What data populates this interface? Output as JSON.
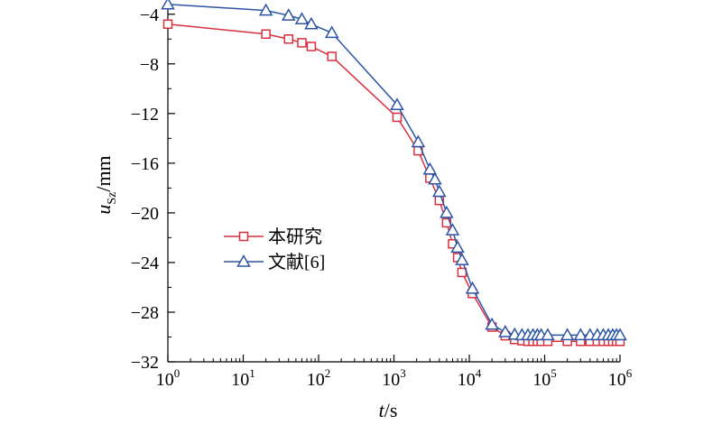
{
  "chart_data": {
    "type": "line",
    "x_scale": "log",
    "xlim": [
      1,
      1000000
    ],
    "ylim": [
      -32,
      -3
    ],
    "xlabel": {
      "italic": "t",
      "rest": "/s"
    },
    "ylabel": {
      "italic": "u",
      "sub": "Sz",
      "rest": "/mm"
    },
    "x_ticks": [
      {
        "value": 1,
        "base": "10",
        "exp": "0"
      },
      {
        "value": 10,
        "base": "10",
        "exp": "1"
      },
      {
        "value": 100,
        "base": "10",
        "exp": "2"
      },
      {
        "value": 1000,
        "base": "10",
        "exp": "3"
      },
      {
        "value": 10000,
        "base": "10",
        "exp": "4"
      },
      {
        "value": 100000,
        "base": "10",
        "exp": "5"
      },
      {
        "value": 1000000,
        "base": "10",
        "exp": "6"
      }
    ],
    "y_ticks": [
      {
        "value": -4,
        "label": "−4"
      },
      {
        "value": -8,
        "label": "−8"
      },
      {
        "value": -12,
        "label": "−12"
      },
      {
        "value": -16,
        "label": "−16"
      },
      {
        "value": -20,
        "label": "−20"
      },
      {
        "value": -24,
        "label": "−24"
      },
      {
        "value": -28,
        "label": "−28"
      },
      {
        "value": -32,
        "label": "−32"
      }
    ],
    "grid": false,
    "legend_position": "middle-left",
    "series": [
      {
        "name": "本研究",
        "color": "#d9303e",
        "marker": "square",
        "x": [
          1,
          20,
          40,
          60,
          80,
          150,
          1100,
          2100,
          3000,
          4000,
          5000,
          6000,
          7000,
          8000,
          11000,
          20000,
          30000,
          40000,
          50000,
          60000,
          70000,
          80000,
          90000,
          110000,
          200000,
          300000,
          400000,
          500000,
          600000,
          700000,
          800000,
          900000,
          1000000
        ],
        "y": [
          -4.8,
          -5.6,
          -6.0,
          -6.3,
          -6.6,
          -7.4,
          -12.3,
          -15.0,
          -17.2,
          -19.0,
          -20.8,
          -22.5,
          -23.6,
          -24.8,
          -26.5,
          -29.2,
          -29.9,
          -30.2,
          -30.3,
          -30.35,
          -30.35,
          -30.35,
          -30.35,
          -30.35,
          -30.35,
          -30.35,
          -30.35,
          -30.35,
          -30.35,
          -30.35,
          -30.35,
          -30.35,
          -30.35
        ]
      },
      {
        "name": "文献[6]",
        "color": "#2e55a5",
        "marker": "triangle",
        "x": [
          1,
          20,
          40,
          60,
          80,
          150,
          1100,
          2100,
          3000,
          3500,
          4000,
          5000,
          6000,
          7000,
          8000,
          11000,
          20000,
          30000,
          40000,
          50000,
          60000,
          70000,
          80000,
          90000,
          110000,
          200000,
          300000,
          400000,
          500000,
          600000,
          700000,
          800000,
          900000,
          1000000
        ],
        "y": [
          -3.2,
          -3.7,
          -4.1,
          -4.4,
          -4.8,
          -5.5,
          -11.3,
          -14.3,
          -16.5,
          -17.3,
          -18.3,
          -20.0,
          -21.4,
          -22.8,
          -23.8,
          -26.1,
          -29.0,
          -29.6,
          -29.8,
          -29.85,
          -29.85,
          -29.85,
          -29.85,
          -29.85,
          -29.85,
          -29.85,
          -29.85,
          -29.85,
          -29.85,
          -29.85,
          -29.85,
          -29.85,
          -29.85,
          -29.85
        ]
      }
    ]
  }
}
